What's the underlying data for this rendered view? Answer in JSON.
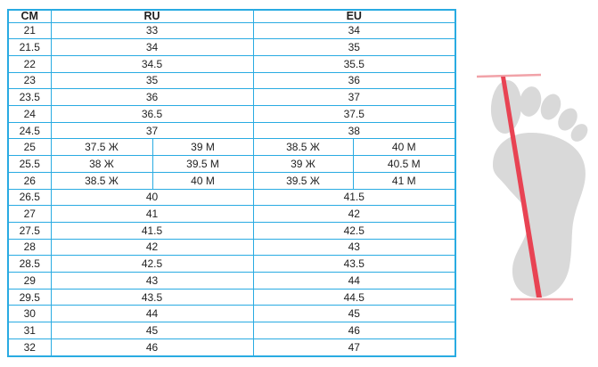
{
  "colors": {
    "border-blue": "#29ABE2",
    "text-dark": "#1f1f1f",
    "foot-gray": "#D9D9D9",
    "line-red": "#E84353",
    "crossbar-pink": "#F1A2A8"
  },
  "table": {
    "headers": {
      "cm": "CM",
      "ru": "RU",
      "eu": "EU"
    },
    "rows": [
      {
        "cm": "21",
        "ru": "33",
        "eu": "34"
      },
      {
        "cm": "21.5",
        "ru": "34",
        "eu": "35"
      },
      {
        "cm": "22",
        "ru": "34.5",
        "eu": "35.5"
      },
      {
        "cm": "23",
        "ru": "35",
        "eu": "36"
      },
      {
        "cm": "23.5",
        "ru": "36",
        "eu": "37"
      },
      {
        "cm": "24",
        "ru": "36.5",
        "eu": "37.5"
      },
      {
        "cm": "24.5",
        "ru": "37",
        "eu": "38"
      },
      {
        "cm": "25",
        "ru_women": "37.5 Ж",
        "ru_men": "39 М",
        "eu_women": "38.5 Ж",
        "eu_men": "40 М"
      },
      {
        "cm": "25.5",
        "ru_women": "38 Ж",
        "ru_men": "39.5 М",
        "eu_women": "39 Ж",
        "eu_men": "40.5 М"
      },
      {
        "cm": "26",
        "ru_women": "38.5 Ж",
        "ru_men": "40 М",
        "eu_women": "39.5 Ж",
        "eu_men": "41 М"
      },
      {
        "cm": "26.5",
        "ru": "40",
        "eu": "41.5"
      },
      {
        "cm": "27",
        "ru": "41",
        "eu": "42"
      },
      {
        "cm": "27.5",
        "ru": "41.5",
        "eu": "42.5"
      },
      {
        "cm": "28",
        "ru": "42",
        "eu": "43"
      },
      {
        "cm": "28.5",
        "ru": "42.5",
        "eu": "43.5"
      },
      {
        "cm": "29",
        "ru": "43",
        "eu": "44"
      },
      {
        "cm": "29.5",
        "ru": "43.5",
        "eu": "44.5"
      },
      {
        "cm": "30",
        "ru": "44",
        "eu": "45"
      },
      {
        "cm": "31",
        "ru": "45",
        "eu": "46"
      },
      {
        "cm": "32",
        "ru": "46",
        "eu": "47"
      }
    ]
  },
  "chart_data": {
    "type": "table",
    "title": "",
    "columns": [
      "CM",
      "RU",
      "EU"
    ],
    "rows": [
      [
        "21",
        "33",
        "34"
      ],
      [
        "21.5",
        "34",
        "35"
      ],
      [
        "22",
        "34.5",
        "35.5"
      ],
      [
        "23",
        "35",
        "36"
      ],
      [
        "23.5",
        "36",
        "37"
      ],
      [
        "24",
        "36.5",
        "37.5"
      ],
      [
        "24.5",
        "37",
        "38"
      ],
      [
        "25",
        "37.5 Ж / 39 М",
        "38.5 Ж / 40 М"
      ],
      [
        "25.5",
        "38 Ж / 39.5 М",
        "39 Ж / 40.5 М"
      ],
      [
        "26",
        "38.5 Ж / 40 М",
        "39.5 Ж / 41 М"
      ],
      [
        "26.5",
        "40",
        "41.5"
      ],
      [
        "27",
        "41",
        "42"
      ],
      [
        "27.5",
        "41.5",
        "42.5"
      ],
      [
        "28",
        "42",
        "43"
      ],
      [
        "28.5",
        "42.5",
        "43.5"
      ],
      [
        "29",
        "43",
        "44"
      ],
      [
        "29.5",
        "43.5",
        "44.5"
      ],
      [
        "30",
        "44",
        "45"
      ],
      [
        "31",
        "45",
        "46"
      ],
      [
        "32",
        "46",
        "47"
      ]
    ],
    "layout_hints": {
      "split_rows_cm": [
        "25",
        "25.5",
        "26"
      ],
      "women_marker": "Ж",
      "men_marker": "М",
      "grid": true,
      "illustration": "foot silhouette with red length-measurement line on the right"
    }
  }
}
